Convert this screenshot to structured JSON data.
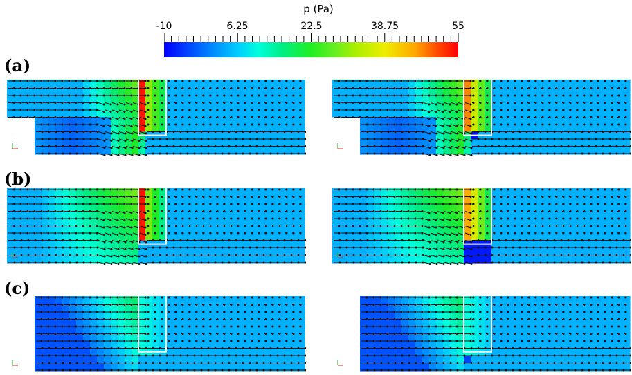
{
  "colorbar": {
    "title": "p (Pa)",
    "min": -10,
    "max": 55,
    "tick_labels": [
      "-10",
      "6.25",
      "22.5",
      "38.75",
      "55"
    ]
  },
  "panels": [
    {
      "label": "(a)"
    },
    {
      "label": "(b)"
    },
    {
      "label": "(c)"
    }
  ],
  "colors": {
    "low": "#0000ff",
    "background_field": "#2a7fc8",
    "high": "#ff0000",
    "outline": "#ffffff",
    "vectors": "#111111"
  }
}
